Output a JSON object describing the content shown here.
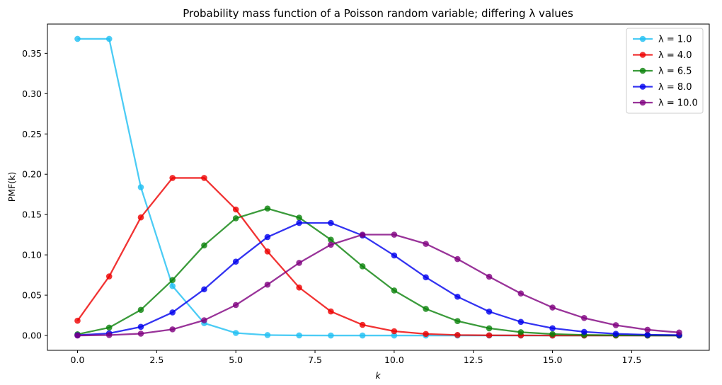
{
  "chart_data": {
    "type": "line",
    "title": "Probability mass function of a Poisson random variable; differing λ values",
    "xlabel": "k",
    "ylabel": "PMF(k)",
    "xlim": [
      -0.95,
      19.95
    ],
    "ylim": [
      -0.0184,
      0.3863
    ],
    "x_ticks": [
      0.0,
      2.5,
      5.0,
      7.5,
      10.0,
      12.5,
      15.0,
      17.5
    ],
    "x_tick_labels": [
      "0.0",
      "2.5",
      "5.0",
      "7.5",
      "10.0",
      "12.5",
      "15.0",
      "17.5"
    ],
    "y_ticks": [
      0.0,
      0.05,
      0.1,
      0.15,
      0.2,
      0.25,
      0.3,
      0.35
    ],
    "y_tick_labels": [
      "0.00",
      "0.05",
      "0.10",
      "0.15",
      "0.20",
      "0.25",
      "0.30",
      "0.35"
    ],
    "grid": false,
    "legend_position": "top-right",
    "x": [
      0,
      1,
      2,
      3,
      4,
      5,
      6,
      7,
      8,
      9,
      10,
      11,
      12,
      13,
      14,
      15,
      16,
      17,
      18,
      19
    ],
    "series": [
      {
        "name": "λ = 1.0",
        "color": "#1fbff2",
        "values": [
          0.3679,
          0.3679,
          0.1839,
          0.0613,
          0.0153,
          0.0031,
          0.0005,
          0.0001,
          0.0,
          0.0,
          0.0,
          0.0,
          0.0,
          0.0,
          0.0,
          0.0,
          0.0,
          0.0,
          0.0,
          0.0
        ]
      },
      {
        "name": "λ = 4.0",
        "color": "#ee0000",
        "values": [
          0.0183,
          0.0733,
          0.1465,
          0.1954,
          0.1954,
          0.1563,
          0.1042,
          0.0595,
          0.0298,
          0.0132,
          0.0053,
          0.0019,
          0.0006,
          0.0002,
          0.0001,
          0.0,
          0.0,
          0.0,
          0.0,
          0.0
        ]
      },
      {
        "name": "λ = 6.5",
        "color": "#0a820a",
        "values": [
          0.0015,
          0.0098,
          0.0318,
          0.0688,
          0.1118,
          0.1454,
          0.1575,
          0.1462,
          0.1188,
          0.0858,
          0.0558,
          0.033,
          0.0179,
          0.0089,
          0.0041,
          0.0018,
          0.0007,
          0.0003,
          0.0001,
          0.0
        ]
      },
      {
        "name": "λ = 8.0",
        "color": "#0000ee",
        "values": [
          0.0003,
          0.0027,
          0.0107,
          0.0286,
          0.0573,
          0.0916,
          0.1221,
          0.1396,
          0.1396,
          0.1241,
          0.0993,
          0.0722,
          0.0481,
          0.0296,
          0.0169,
          0.009,
          0.0045,
          0.0021,
          0.0009,
          0.0004
        ]
      },
      {
        "name": "λ = 10.0",
        "color": "#800080",
        "values": [
          0.0,
          0.0005,
          0.0023,
          0.0076,
          0.0189,
          0.0378,
          0.0631,
          0.0901,
          0.1126,
          0.1251,
          0.1251,
          0.1137,
          0.0948,
          0.0729,
          0.0521,
          0.0347,
          0.0217,
          0.0128,
          0.0071,
          0.0037
        ]
      }
    ]
  }
}
